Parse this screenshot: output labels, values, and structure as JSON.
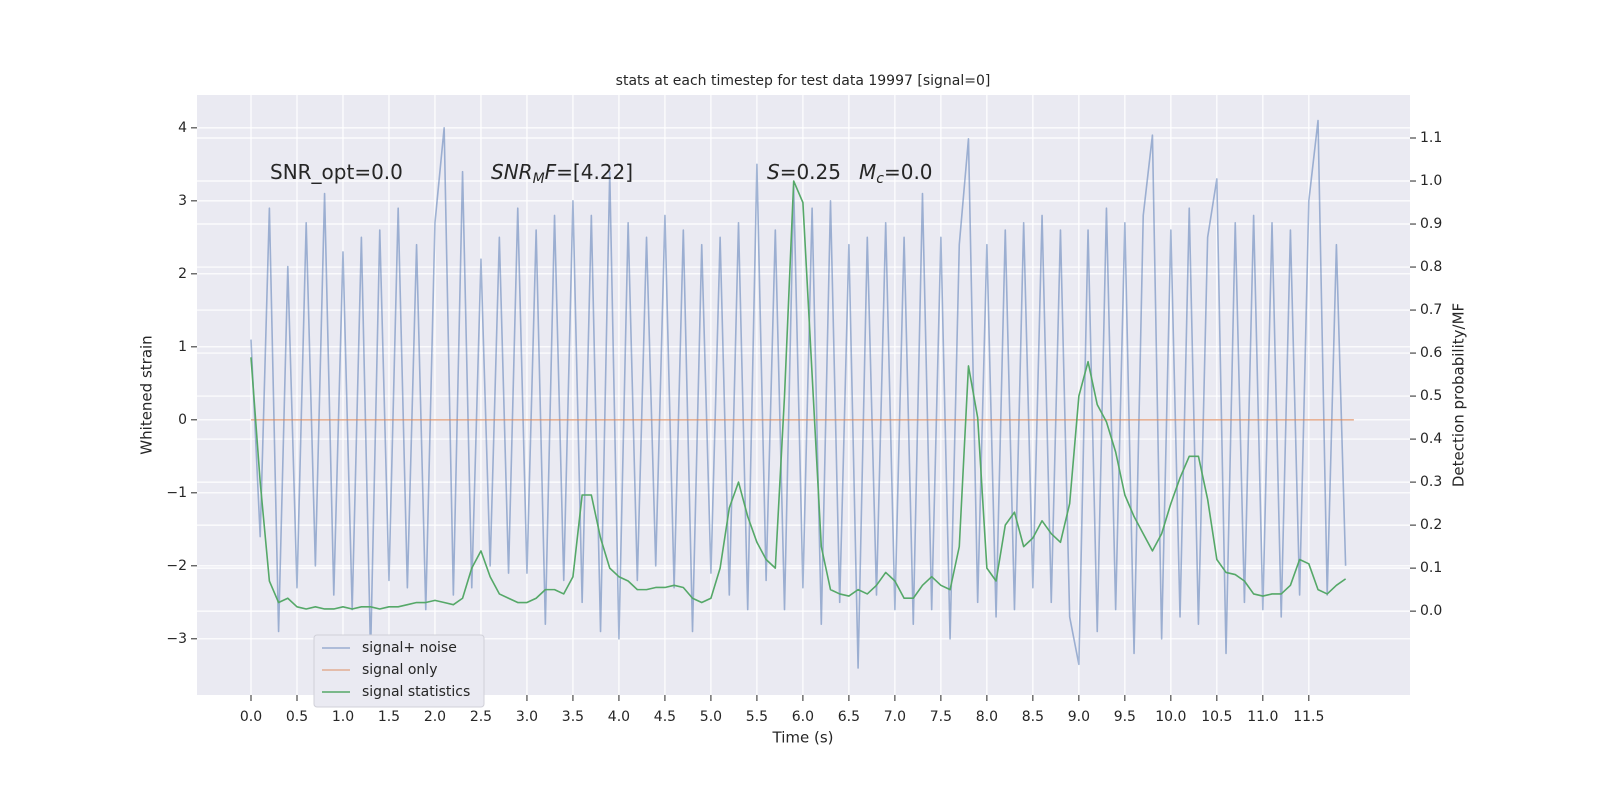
{
  "chart_data": {
    "type": "line",
    "title": "stats at each timestep for test data 19997 [signal=0]",
    "xlabel": "Time (s)",
    "ylabel": "Whitened strain",
    "y2label": "Detection probability/MF",
    "annotations": [
      [
        {
          "text": "SNR_opt=0.0"
        }
      ],
      [
        {
          "text": "SNR",
          "italic": true
        },
        {
          "text": "M",
          "italic": true,
          "sub": true
        },
        {
          "text": "F",
          "italic": true
        },
        {
          "text": "=[4.22]"
        }
      ],
      [
        {
          "text": "S",
          "italic": true
        },
        {
          "text": "=0.25"
        }
      ],
      [
        {
          "text": "M",
          "italic": true
        },
        {
          "text": "c",
          "italic": true,
          "sub": true
        },
        {
          "text": "=0.0"
        }
      ]
    ],
    "x": [
      0,
      0.1,
      0.2,
      0.3,
      0.4,
      0.5,
      0.6,
      0.7,
      0.8,
      0.9,
      1.0,
      1.1,
      1.2,
      1.3,
      1.4,
      1.5,
      1.6,
      1.7,
      1.8,
      1.9,
      2.0,
      2.1,
      2.2,
      2.3,
      2.4,
      2.5,
      2.6,
      2.7,
      2.8,
      2.9,
      3.0,
      3.1,
      3.2,
      3.3,
      3.4,
      3.5,
      3.6,
      3.7,
      3.8,
      3.9,
      4.0,
      4.1,
      4.2,
      4.3,
      4.4,
      4.5,
      4.6,
      4.7,
      4.8,
      4.9,
      5.0,
      5.1,
      5.2,
      5.3,
      5.4,
      5.5,
      5.6,
      5.7,
      5.8,
      5.9,
      6.0,
      6.1,
      6.2,
      6.3,
      6.4,
      6.5,
      6.6,
      6.7,
      6.8,
      6.9,
      7.0,
      7.1,
      7.2,
      7.3,
      7.4,
      7.5,
      7.6,
      7.7,
      7.8,
      7.9,
      8.0,
      8.1,
      8.2,
      8.3,
      8.4,
      8.5,
      8.6,
      8.7,
      8.8,
      8.9,
      9.0,
      9.1,
      9.2,
      9.3,
      9.4,
      9.5,
      9.6,
      9.7,
      9.8,
      9.9,
      10.0,
      10.1,
      10.2,
      10.3,
      10.4,
      10.5,
      10.6,
      10.7,
      10.8,
      10.9,
      11.0,
      11.1,
      11.2,
      11.3,
      11.4,
      11.5,
      11.6,
      11.7,
      11.8,
      11.9
    ],
    "series": [
      {
        "name": "signal+ noise",
        "color": "#4c72b0",
        "opacity": 0.5,
        "values": [
          1.1,
          -1.6,
          2.9,
          -2.9,
          2.1,
          -2.3,
          2.7,
          -2.0,
          3.1,
          -2.4,
          2.3,
          -2.6,
          2.5,
          -3.2,
          2.6,
          -2.2,
          2.9,
          -2.3,
          2.4,
          -2.6,
          2.7,
          4.0,
          -2.4,
          3.4,
          -2.3,
          2.2,
          -2.0,
          2.5,
          -2.1,
          2.9,
          -2.1,
          2.6,
          -2.8,
          2.8,
          -2.2,
          3.0,
          -2.5,
          2.8,
          -2.9,
          3.4,
          -3.0,
          2.7,
          -2.2,
          2.5,
          -2.0,
          2.8,
          -2.3,
          2.6,
          -2.9,
          2.4,
          -2.1,
          2.5,
          -2.4,
          2.7,
          -2.6,
          3.5,
          -2.2,
          2.6,
          -2.6,
          3.2,
          -2.3,
          2.9,
          -2.8,
          3.0,
          -2.5,
          2.4,
          -3.4,
          2.5,
          -2.4,
          2.7,
          -2.6,
          2.5,
          -2.8,
          3.1,
          -2.6,
          2.5,
          -3.0,
          2.4,
          3.85,
          -2.5,
          2.4,
          -2.7,
          2.6,
          -2.6,
          2.7,
          -2.3,
          2.8,
          -2.5,
          2.6,
          -2.7,
          -3.35,
          2.6,
          -2.9,
          2.9,
          -2.6,
          2.7,
          -3.2,
          2.8,
          3.9,
          -3.0,
          2.6,
          -2.7,
          2.9,
          -2.8,
          2.5,
          3.3,
          -3.2,
          2.7,
          -2.5,
          2.8,
          -2.6,
          2.7,
          -2.7,
          2.6,
          -2.4,
          3.0,
          4.1,
          -2.4,
          2.4,
          -2.0
        ]
      },
      {
        "name": "signal only",
        "color": "#dd8452",
        "opacity": 0.6,
        "x": [
          0,
          11.99
        ],
        "values": [
          0,
          0
        ]
      },
      {
        "name": "signal statistics",
        "color": "#55a868",
        "opacity": 1,
        "axis": "y2",
        "values": [
          0.59,
          0.3,
          0.07,
          0.02,
          0.03,
          0.01,
          0.005,
          0.01,
          0.005,
          0.005,
          0.01,
          0.005,
          0.01,
          0.01,
          0.005,
          0.01,
          0.01,
          0.015,
          0.02,
          0.02,
          0.025,
          0.02,
          0.015,
          0.03,
          0.1,
          0.14,
          0.08,
          0.04,
          0.03,
          0.02,
          0.02,
          0.03,
          0.05,
          0.05,
          0.04,
          0.08,
          0.27,
          0.27,
          0.17,
          0.1,
          0.08,
          0.07,
          0.05,
          0.05,
          0.055,
          0.055,
          0.06,
          0.055,
          0.03,
          0.02,
          0.03,
          0.1,
          0.24,
          0.3,
          0.22,
          0.16,
          0.12,
          0.1,
          0.5,
          1.0,
          0.95,
          0.55,
          0.15,
          0.05,
          0.04,
          0.035,
          0.05,
          0.04,
          0.06,
          0.09,
          0.07,
          0.03,
          0.03,
          0.06,
          0.08,
          0.06,
          0.05,
          0.15,
          0.57,
          0.45,
          0.1,
          0.07,
          0.2,
          0.23,
          0.15,
          0.17,
          0.21,
          0.18,
          0.16,
          0.25,
          0.5,
          0.58,
          0.48,
          0.44,
          0.37,
          0.27,
          0.22,
          0.18,
          0.14,
          0.18,
          0.25,
          0.31,
          0.36,
          0.36,
          0.26,
          0.12,
          0.09,
          0.085,
          0.07,
          0.04,
          0.035,
          0.04,
          0.04,
          0.06,
          0.12,
          0.11,
          0.05,
          0.04,
          0.06,
          0.075
        ]
      }
    ],
    "xlim": [
      -0.587,
      12.6
    ],
    "xticks": [
      {
        "value": 0,
        "label": "0.0"
      },
      0.5,
      {
        "value": 1,
        "label": "1.0"
      },
      1.5,
      {
        "value": 2,
        "label": "2.0"
      },
      2.5,
      {
        "value": 3,
        "label": "3.0"
      },
      3.5,
      {
        "value": 4,
        "label": "4.0"
      },
      4.5,
      {
        "value": 5,
        "label": "5.0"
      },
      5.5,
      {
        "value": 6,
        "label": "6.0"
      },
      6.5,
      {
        "value": 7,
        "label": "7.0"
      },
      7.5,
      {
        "value": 8,
        "label": "8.0"
      },
      8.5,
      {
        "value": 9,
        "label": "9.0"
      },
      9.5,
      {
        "value": 10,
        "label": "10.0"
      },
      10.5,
      {
        "value": 11,
        "label": "11.0"
      },
      11.5
    ],
    "ylim": [
      -3.77,
      4.45
    ],
    "yticks": [
      {
        "value": -3,
        "label": "−3"
      },
      {
        "value": -2,
        "label": "−2"
      },
      {
        "value": -1,
        "label": "−1"
      },
      0,
      1,
      2,
      3,
      4
    ],
    "y2lim": [
      -0.195,
      1.2
    ],
    "y2ticks": [
      {
        "value": 0,
        "label": "0.0"
      },
      0.1,
      0.2,
      0.3,
      0.4,
      0.5,
      0.6,
      0.7,
      0.8,
      0.9,
      {
        "value": 1,
        "label": "1.0"
      },
      1.1
    ],
    "grid": true,
    "legend": "lower left"
  }
}
